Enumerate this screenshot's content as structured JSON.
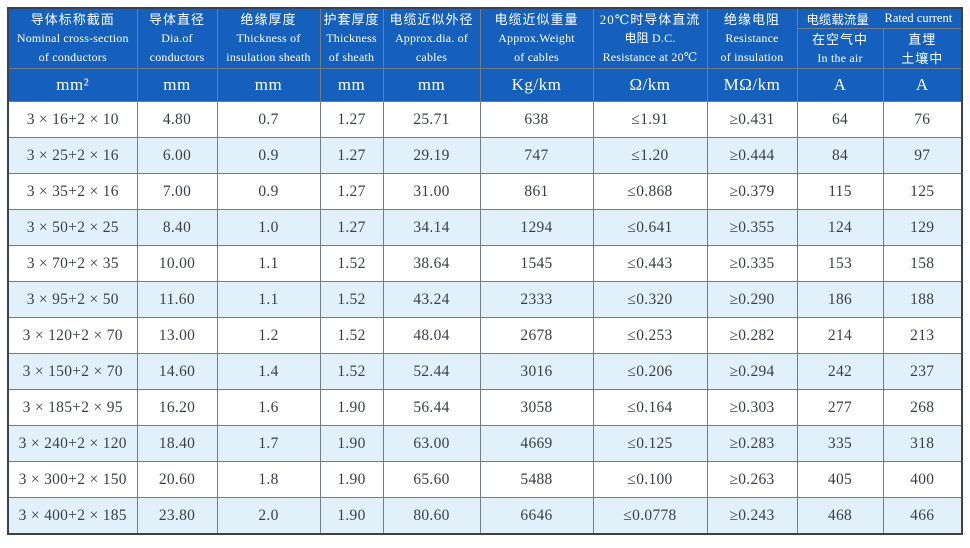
{
  "table": {
    "title_semantic": "Cable specification table",
    "columns": [
      {
        "line1": "导体标称截面",
        "line2": "Nominal cross-section",
        "line3": "of conductors"
      },
      {
        "line1": "导体直径",
        "line2": "Dia.of",
        "line3": "conductors"
      },
      {
        "line1": "绝缘厚度",
        "line2": "Thickness of",
        "line3": "insulation sheath"
      },
      {
        "line1": "护套厚度",
        "line2": "Thickness",
        "line3": "of sheath"
      },
      {
        "line1": "电缆近似外径",
        "line2": "Approx.dia. of",
        "line3": "cables"
      },
      {
        "line1": "电缆近似重量",
        "line2": "Approx.Weight",
        "line3": "of cables"
      },
      {
        "line1": "20℃时导体直流",
        "line2": "电阻 D.C.",
        "line3": "Resistance at 20℃"
      },
      {
        "line1": "绝缘电阻",
        "line2": "Resistance",
        "line3": "of insulation"
      }
    ],
    "group": {
      "zh": "电缆载流量",
      "en": "Rated current",
      "sub": [
        {
          "line1": "在空气中",
          "line2": "In the air"
        },
        {
          "line1": "直埋",
          "line2": "土壤中"
        }
      ]
    },
    "units": [
      "mm²",
      "mm",
      "mm",
      "mm",
      "mm",
      "Kg/km",
      "Ω/km",
      "MΩ/km",
      "A",
      "A"
    ],
    "rows": [
      [
        "3 × 16+2 × 10",
        "4.80",
        "0.7",
        "1.27",
        "25.71",
        "638",
        "≤1.91",
        "≥0.431",
        "64",
        "76"
      ],
      [
        "3 × 25+2 × 16",
        "6.00",
        "0.9",
        "1.27",
        "29.19",
        "747",
        "≤1.20",
        "≥0.444",
        "84",
        "97"
      ],
      [
        "3 × 35+2 × 16",
        "7.00",
        "0.9",
        "1.27",
        "31.00",
        "861",
        "≤0.868",
        "≥0.379",
        "115",
        "125"
      ],
      [
        "3 × 50+2 × 25",
        "8.40",
        "1.0",
        "1.27",
        "34.14",
        "1294",
        "≤0.641",
        "≥0.355",
        "124",
        "129"
      ],
      [
        "3 × 70+2 × 35",
        "10.00",
        "1.1",
        "1.52",
        "38.64",
        "1545",
        "≤0.443",
        "≥0.335",
        "153",
        "158"
      ],
      [
        "3 × 95+2 × 50",
        "11.60",
        "1.1",
        "1.52",
        "43.24",
        "2333",
        "≤0.320",
        "≥0.290",
        "186",
        "188"
      ],
      [
        "3 × 120+2 × 70",
        "13.00",
        "1.2",
        "1.52",
        "48.04",
        "2678",
        "≤0.253",
        "≥0.282",
        "214",
        "213"
      ],
      [
        "3 × 150+2 × 70",
        "14.60",
        "1.4",
        "1.52",
        "52.44",
        "3016",
        "≤0.206",
        "≥0.294",
        "242",
        "237"
      ],
      [
        "3 × 185+2 × 95",
        "16.20",
        "1.6",
        "1.90",
        "56.44",
        "3058",
        "≤0.164",
        "≥0.303",
        "277",
        "268"
      ],
      [
        "3 × 240+2 × 120",
        "18.40",
        "1.7",
        "1.90",
        "63.00",
        "4669",
        "≤0.125",
        "≥0.283",
        "335",
        "318"
      ],
      [
        "3 × 300+2 × 150",
        "20.60",
        "1.8",
        "1.90",
        "65.60",
        "5488",
        "≤0.100",
        "≥0.263",
        "405",
        "400"
      ],
      [
        "3 × 400+2 × 185",
        "23.80",
        "2.0",
        "1.90",
        "80.60",
        "6646",
        "≤0.0778",
        "≥0.243",
        "468",
        "466"
      ]
    ],
    "colors": {
      "header_bg": "#1560bd",
      "alt_row_bg": "#e2f0fa",
      "body_text": "#3a3f45",
      "header_text": "#ffffff",
      "inner_border": "#767c85",
      "outer_border": "#3d424a"
    }
  }
}
